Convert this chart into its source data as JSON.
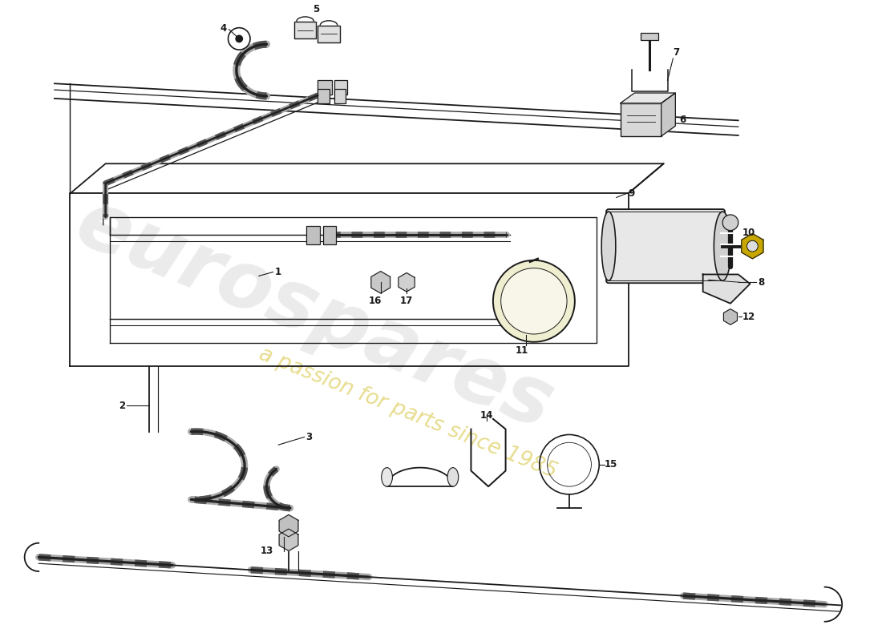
{
  "bg_color": "#ffffff",
  "line_color": "#1a1a1a",
  "lw_main": 1.3,
  "watermark_color": "#c8c8c8",
  "watermark_alpha": 0.45,
  "watermark2_color": "#d4c840",
  "watermark2_alpha": 0.55
}
